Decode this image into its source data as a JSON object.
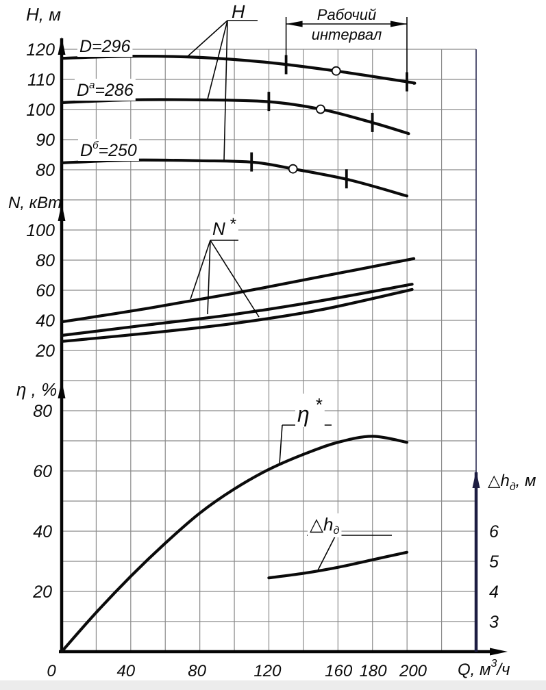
{
  "colors": {
    "curve": "#0b0b0b",
    "grid": "#8a8a8a",
    "axis": "#050505",
    "right_axis": "#1d1d42",
    "right_border": "#2a2a52",
    "background": "#ffffff",
    "bottom_strip": "#ececec"
  },
  "axis_titles": {
    "h": "H, м",
    "n": "N, кВт",
    "eta": "η , %",
    "q": {
      "base": "Q, м",
      "sup": "3",
      "suffix": "/ч"
    },
    "dh": {
      "base": "△h",
      "sub": "д",
      "suffix": ", м"
    }
  },
  "curve_labels": {
    "d296": {
      "text": "D=296"
    },
    "d286": {
      "base": "D",
      "sup": "а",
      "eq": "=286"
    },
    "d250": {
      "base": "D",
      "sup": "б",
      "eq": "=250"
    }
  },
  "annotations": {
    "h_pointer": "H",
    "n_pointer": {
      "base": "N",
      "star": "*"
    },
    "eta_pointer": {
      "base": "η",
      "star": "*"
    },
    "dh_pointer": {
      "base": "△h",
      "sub": "д"
    },
    "working_interval": {
      "line1": "Рабочий",
      "line2": "интервал"
    }
  },
  "chart_data": {
    "type": "line",
    "title": "Pump performance curves (Q-H, Q-N, Q-η, Q-Δhд)",
    "xlabel": "Q, м³/ч",
    "x_ticks": [
      0,
      40,
      80,
      120,
      160,
      180,
      200
    ],
    "x_range": [
      0,
      240
    ],
    "grid": true,
    "working_interval_q": [
      130,
      200
    ],
    "panels": [
      {
        "name": "head",
        "ylabel": "H, м",
        "y_ticks": [
          120,
          110,
          100,
          90,
          80
        ],
        "y_range": [
          70,
          125
        ],
        "series": [
          {
            "name": "D=296",
            "points": [
              [
                0,
                117
              ],
              [
                40,
                117.7
              ],
              [
                80,
                117.3
              ],
              [
                120,
                115.6
              ],
              [
                160,
                112.7
              ],
              [
                200,
                109.2
              ],
              [
                204,
                108.7
              ]
            ],
            "interval_marks": [
              [
                130,
                114.9
              ],
              [
                200,
                109.2
              ]
            ],
            "bep": [
              159,
              112.8
            ]
          },
          {
            "name": "Dа=286",
            "points": [
              [
                0,
                102.3
              ],
              [
                40,
                103.2
              ],
              [
                80,
                103.2
              ],
              [
                120,
                102.6
              ],
              [
                151,
                100
              ],
              [
                181,
                95.5
              ],
              [
                201,
                92
              ]
            ],
            "interval_marks": [
              [
                120,
                102.7
              ],
              [
                180,
                95.7
              ]
            ],
            "bep": [
              150,
              100.1
            ]
          },
          {
            "name": "Dб=250",
            "points": [
              [
                0,
                82.3
              ],
              [
                40,
                83.2
              ],
              [
                80,
                83
              ],
              [
                111,
                82.5
              ],
              [
                134,
                80.3
              ],
              [
                167,
                76.6
              ],
              [
                200,
                71.3
              ]
            ],
            "interval_marks": [
              [
                110,
                82.6
              ],
              [
                165,
                77
              ]
            ],
            "bep": [
              134,
              80.3
            ]
          }
        ]
      },
      {
        "name": "power",
        "ylabel": "N, кВт",
        "y_ticks": [
          100,
          80,
          60,
          40,
          20
        ],
        "y_range": [
          10,
          110
        ],
        "series": [
          {
            "name": "N (D=296)",
            "points": [
              [
                0,
                39
              ],
              [
                50,
                48
              ],
              [
                100,
                58
              ],
              [
                150,
                69
              ],
              [
                204,
                81
              ]
            ]
          },
          {
            "name": "N (D=286)",
            "points": [
              [
                0,
                30
              ],
              [
                50,
                37
              ],
              [
                100,
                44
              ],
              [
                150,
                53
              ],
              [
                203,
                64
              ]
            ]
          },
          {
            "name": "N (D=250)",
            "points": [
              [
                0,
                26
              ],
              [
                50,
                31.5
              ],
              [
                100,
                38
              ],
              [
                150,
                47
              ],
              [
                203,
                60.5
              ]
            ]
          }
        ]
      },
      {
        "name": "efficiency",
        "ylabel": "η, %",
        "y_ticks": [
          80,
          60,
          40,
          20
        ],
        "y_range": [
          0,
          90
        ],
        "series": [
          {
            "name": "η*",
            "points": [
              [
                0,
                0
              ],
              [
                20,
                13
              ],
              [
                40,
                25
              ],
              [
                60,
                36
              ],
              [
                80,
                46
              ],
              [
                100,
                54
              ],
              [
                120,
                60.5
              ],
              [
                140,
                65.5
              ],
              [
                160,
                69.5
              ],
              [
                180,
                71.5
              ],
              [
                200,
                69.5
              ]
            ]
          }
        ]
      },
      {
        "name": "cavitation",
        "ylabel": "△hд, м",
        "y_ticks": [
          6,
          5,
          4,
          3
        ],
        "y_range": [
          2.5,
          6.5
        ],
        "series": [
          {
            "name": "Δhд",
            "points": [
              [
                120,
                4.45
              ],
              [
                140,
                4.6
              ],
              [
                160,
                4.8
              ],
              [
                180,
                5.05
              ],
              [
                200,
                5.3
              ]
            ]
          }
        ]
      }
    ]
  }
}
